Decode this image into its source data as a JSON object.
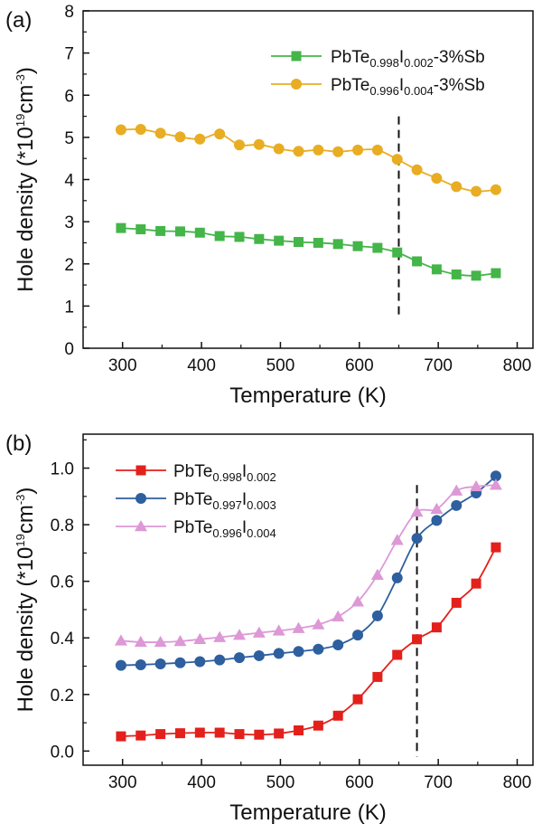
{
  "chart_data": [
    {
      "type": "line",
      "panel_label": "(a)",
      "xlabel": "Temperature (K)",
      "ylabel": "Hole density (*10^19 cm^-3)",
      "xlim": [
        250,
        820
      ],
      "ylim": [
        0,
        8
      ],
      "xticks": [
        300,
        400,
        500,
        600,
        700,
        800
      ],
      "yticks": [
        0,
        1,
        2,
        3,
        4,
        5,
        6,
        7,
        8
      ],
      "grid": false,
      "legend_position": "top-right",
      "vline_x": 650,
      "series": [
        {
          "name": "PbTe0.998I0.002-3%Sb",
          "name_parts": {
            "base": "PbTe",
            "s1": "0.998",
            "mid": "I",
            "s2": "0.002",
            "suffix": "-3%Sb"
          },
          "marker": "square",
          "color": "#44b549",
          "x": [
            298,
            323,
            348,
            373,
            398,
            423,
            448,
            473,
            498,
            523,
            548,
            573,
            598,
            623,
            648,
            673,
            698,
            723,
            748,
            773
          ],
          "y": [
            2.85,
            2.82,
            2.78,
            2.77,
            2.74,
            2.66,
            2.64,
            2.59,
            2.55,
            2.52,
            2.5,
            2.47,
            2.42,
            2.38,
            2.27,
            2.06,
            1.87,
            1.75,
            1.72,
            1.78
          ]
        },
        {
          "name": "PbTe0.996I0.004-3%Sb",
          "name_parts": {
            "base": "PbTe",
            "s1": "0.996",
            "mid": "I",
            "s2": "0.004",
            "suffix": "-3%Sb"
          },
          "marker": "circle",
          "color": "#e8ad22",
          "x": [
            298,
            323,
            348,
            373,
            398,
            423,
            448,
            473,
            498,
            523,
            548,
            573,
            598,
            623,
            648,
            673,
            698,
            723,
            748,
            773
          ],
          "y": [
            5.18,
            5.19,
            5.1,
            5.01,
            4.96,
            5.08,
            4.82,
            4.83,
            4.73,
            4.67,
            4.7,
            4.66,
            4.7,
            4.7,
            4.48,
            4.23,
            4.03,
            3.83,
            3.72,
            3.76
          ]
        }
      ]
    },
    {
      "type": "line",
      "panel_label": "(b)",
      "xlabel": "Temperature (K)",
      "ylabel": "Hole density (*10^19 cm^-3)",
      "xlim": [
        250,
        820
      ],
      "ylim": [
        -0.05,
        1.12
      ],
      "xticks": [
        300,
        400,
        500,
        600,
        700,
        800
      ],
      "yticks": [
        0.0,
        0.2,
        0.4,
        0.6,
        0.8,
        1.0
      ],
      "grid": false,
      "legend_position": "top-left",
      "vline_x": 673,
      "series": [
        {
          "name": "PbTe0.998I0.002",
          "name_parts": {
            "base": "PbTe",
            "s1": "0.998",
            "mid": "I",
            "s2": "0.002",
            "suffix": ""
          },
          "marker": "square",
          "color": "#e3201b",
          "x": [
            298,
            323,
            348,
            373,
            398,
            423,
            448,
            473,
            498,
            523,
            548,
            573,
            598,
            623,
            648,
            673,
            698,
            723,
            748,
            773
          ],
          "y": [
            0.052,
            0.055,
            0.06,
            0.063,
            0.065,
            0.065,
            0.06,
            0.058,
            0.062,
            0.073,
            0.09,
            0.125,
            0.183,
            0.262,
            0.34,
            0.395,
            0.437,
            0.524,
            0.592,
            0.72
          ]
        },
        {
          "name": "PbTe0.997I0.003",
          "name_parts": {
            "base": "PbTe",
            "s1": "0.997",
            "mid": "I",
            "s2": "0.003",
            "suffix": ""
          },
          "marker": "circle",
          "color": "#2e5f9e",
          "x": [
            298,
            323,
            348,
            373,
            398,
            423,
            448,
            473,
            498,
            523,
            548,
            573,
            598,
            623,
            648,
            673,
            698,
            723,
            748,
            773
          ],
          "y": [
            0.303,
            0.305,
            0.308,
            0.312,
            0.316,
            0.322,
            0.33,
            0.337,
            0.345,
            0.352,
            0.36,
            0.375,
            0.41,
            0.478,
            0.612,
            0.752,
            0.815,
            0.868,
            0.912,
            0.972
          ]
        },
        {
          "name": "PbTe0.996I0.004",
          "name_parts": {
            "base": "PbTe",
            "s1": "0.996",
            "mid": "I",
            "s2": "0.004",
            "suffix": ""
          },
          "marker": "triangle",
          "color": "#dd98d6",
          "x": [
            298,
            323,
            348,
            373,
            398,
            423,
            448,
            473,
            498,
            523,
            548,
            573,
            598,
            623,
            648,
            673,
            698,
            723,
            748,
            773
          ],
          "y": [
            0.39,
            0.385,
            0.385,
            0.388,
            0.395,
            0.402,
            0.41,
            0.418,
            0.425,
            0.434,
            0.447,
            0.475,
            0.528,
            0.622,
            0.745,
            0.845,
            0.855,
            0.92,
            0.935,
            0.94
          ]
        }
      ]
    }
  ]
}
